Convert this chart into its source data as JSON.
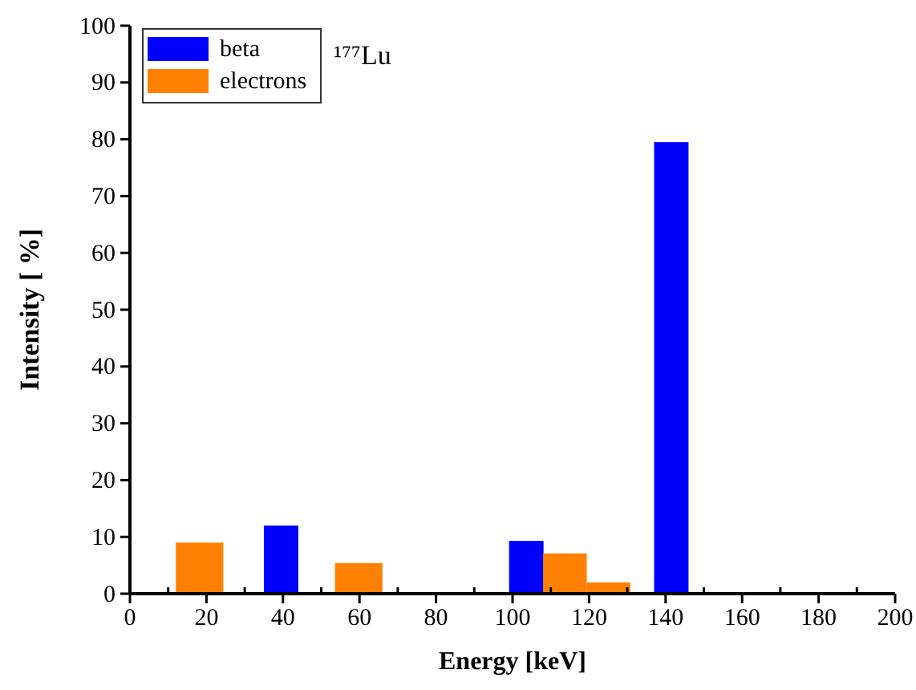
{
  "chart_data": {
    "type": "bar",
    "xlabel": "Energy [keV]",
    "ylabel": "Intensity [ %]",
    "annotations": [
      "¹⁷⁷Lu"
    ],
    "series": [
      {
        "name": "beta",
        "color": "#0000ff",
        "x": [
          39.5,
          103.6,
          141.5
        ],
        "values": [
          12,
          9.3,
          79.5
        ]
      },
      {
        "name": "electrons",
        "color": "#ff8000",
        "x": [
          18.2,
          59.8,
          114.2,
          124.6
        ],
        "values": [
          9,
          5.4,
          7.1,
          2
        ]
      }
    ],
    "xlim": [
      0,
      200
    ],
    "xticks": [
      0,
      {
        "value": 10,
        "label": null
      },
      20,
      {
        "value": 30,
        "label": null
      },
      40,
      {
        "value": 50,
        "label": null
      },
      60,
      {
        "value": 70,
        "label": null
      },
      80,
      {
        "value": 90,
        "label": null
      },
      100,
      {
        "value": 110,
        "label": null
      },
      120,
      {
        "value": 130,
        "label": null
      },
      140,
      {
        "value": 150,
        "label": null
      },
      160,
      {
        "value": 170,
        "label": null
      },
      180,
      {
        "value": 190,
        "label": null
      },
      200
    ],
    "ylim": [
      0,
      100
    ],
    "yticks": [
      0,
      10,
      20,
      30,
      40,
      50,
      60,
      70,
      80,
      90,
      100
    ],
    "legend": "top left"
  }
}
